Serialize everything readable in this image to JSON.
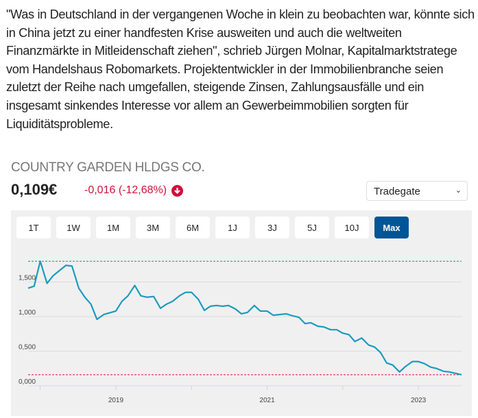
{
  "article": {
    "paragraph": "\"Was in Deutschland in der vergangenen Woche in klein zu beobachten war, könnte sich in China jetzt zu einer handfesten Krise ausweiten und auch die weltweiten Finanzmärkte in Mitleidenschaft ziehen\", schrieb Jürgen Molnar, Kapitalmarktstratege vom Handelshaus Robomarkets. Projektentwickler in der Immobilienbranche seien zuletzt der Reihe nach umgefallen, steigende Zinsen, Zahlungsausfälle und ein insgesamt sinkendes Interesse vor allem an Gewerbeimmobilien sorgten für Liquiditätsprobleme."
  },
  "stock": {
    "name": "COUNTRY GARDEN HLDGS CO.",
    "price": "0,109€",
    "change": "-0,016 (-12,68%)",
    "change_icon": "arrow-down-circle-icon",
    "exchange": "Tradegate"
  },
  "ranges": [
    "1T",
    "1W",
    "1M",
    "3M",
    "6M",
    "1J",
    "3J",
    "5J",
    "10J",
    "Max"
  ],
  "active_range": "Max",
  "colors": {
    "line": "#1a9bbf",
    "max_line": "#1a8a6a",
    "min_line": "#d0103a",
    "accent": "#005596",
    "negative": "#d0103a"
  },
  "chart_data": {
    "type": "line",
    "xlim": [
      2017.84,
      2023.57
    ],
    "ylim": [
      0,
      1.92
    ],
    "yticks": [
      {
        "v": 0,
        "label": "0,000"
      },
      {
        "v": 0.5,
        "label": "0,500"
      },
      {
        "v": 1,
        "label": "1,000"
      },
      {
        "v": 1.5,
        "label": "1,500"
      }
    ],
    "xticks": [
      {
        "v": 2018,
        "label": ""
      },
      {
        "v": 2019,
        "label": "2019"
      },
      {
        "v": 2020,
        "label": ""
      },
      {
        "v": 2021,
        "label": "2021"
      },
      {
        "v": 2022,
        "label": ""
      },
      {
        "v": 2023,
        "label": "2023"
      }
    ],
    "max_line": 1.8,
    "min_line": 0.16,
    "grid": true,
    "x": [
      2017.84,
      2017.92,
      2018.0,
      2018.09,
      2018.17,
      2018.34,
      2018.42,
      2018.51,
      2018.59,
      2018.67,
      2018.75,
      2018.84,
      2019.0,
      2019.08,
      2019.16,
      2019.25,
      2019.33,
      2019.41,
      2019.5,
      2019.59,
      2019.67,
      2019.75,
      2019.84,
      2019.92,
      2020.0,
      2020.09,
      2020.17,
      2020.25,
      2020.33,
      2020.41,
      2020.49,
      2020.58,
      2020.66,
      2020.74,
      2020.83,
      2020.91,
      2021.0,
      2021.08,
      2021.17,
      2021.25,
      2021.34,
      2021.42,
      2021.5,
      2021.58,
      2021.67,
      2021.75,
      2021.84,
      2021.92,
      2022.0,
      2022.08,
      2022.16,
      2022.25,
      2022.34,
      2022.42,
      2022.5,
      2022.58,
      2022.66,
      2022.75,
      2022.83,
      2022.92,
      2023.0,
      2023.08,
      2023.16,
      2023.24,
      2023.33,
      2023.41,
      2023.49,
      2023.57
    ],
    "values": [
      1.41,
      1.44,
      1.8,
      1.48,
      1.59,
      1.74,
      1.73,
      1.41,
      1.28,
      1.18,
      0.96,
      1.03,
      1.08,
      1.22,
      1.3,
      1.45,
      1.3,
      1.28,
      1.29,
      1.12,
      1.18,
      1.22,
      1.3,
      1.35,
      1.35,
      1.25,
      1.09,
      1.15,
      1.16,
      1.15,
      1.16,
      1.11,
      1.04,
      1.06,
      1.16,
      1.08,
      1.08,
      1.02,
      1.03,
      1.04,
      1.01,
      0.99,
      0.9,
      0.91,
      0.86,
      0.85,
      0.81,
      0.81,
      0.76,
      0.74,
      0.64,
      0.69,
      0.59,
      0.56,
      0.48,
      0.33,
      0.3,
      0.2,
      0.28,
      0.35,
      0.35,
      0.32,
      0.27,
      0.25,
      0.21,
      0.2,
      0.18,
      0.16
    ]
  }
}
